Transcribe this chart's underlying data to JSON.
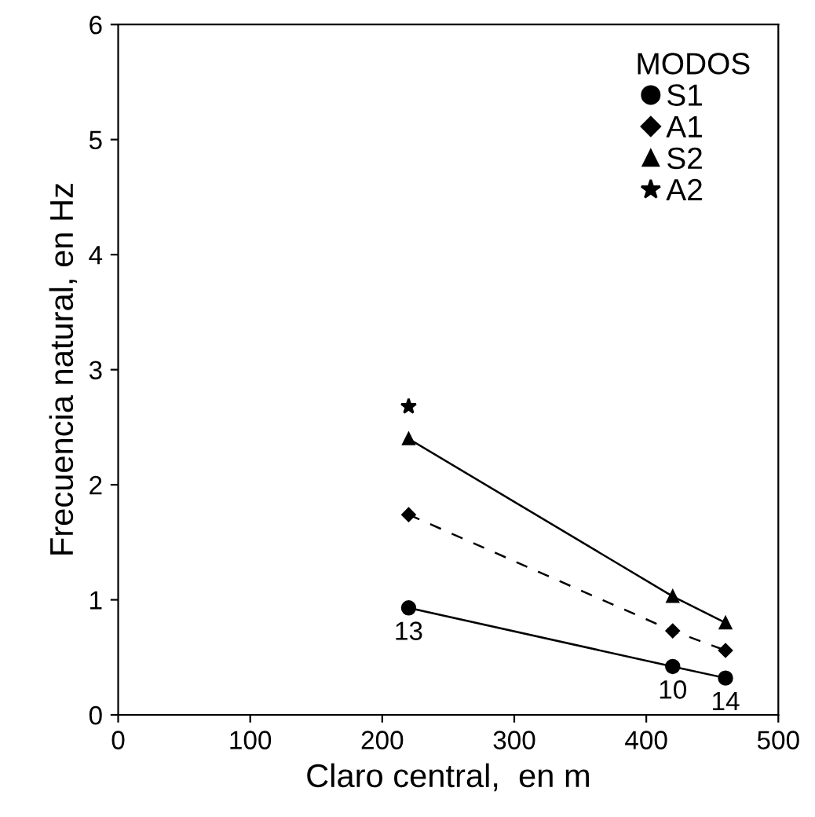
{
  "chart_data": {
    "type": "line",
    "xlabel": "Claro central,  en m",
    "ylabel": "Frecuencia natural, en Hz",
    "legend_title": "MODOS",
    "legend": "top right",
    "x": [
      220,
      420,
      460
    ],
    "series": [
      {
        "name": "S1",
        "color": "#000000",
        "marker": "circle",
        "line_style": "solid",
        "values": [
          0.93,
          0.42,
          0.32
        ]
      },
      {
        "name": "A1",
        "color": "#000000",
        "marker": "diamond",
        "line_style": "dashed",
        "values": [
          1.74,
          0.73,
          0.56
        ]
      },
      {
        "name": "S2",
        "color": "#000000",
        "marker": "triangle",
        "line_style": "solid",
        "values": [
          2.4,
          1.03,
          0.8
        ]
      },
      {
        "name": "A2",
        "color": "#000000",
        "marker": "star",
        "values": [
          2.68,
          null,
          null
        ]
      }
    ],
    "annotations": [
      {
        "text": "13",
        "x": 220,
        "y": 0.93
      },
      {
        "text": "10",
        "x": 420,
        "y": 0.42
      },
      {
        "text": "14",
        "x": 460,
        "y": 0.32
      }
    ],
    "xlim": [
      0,
      500
    ],
    "xticks": [
      0,
      100,
      200,
      300,
      400,
      500
    ],
    "ylim": [
      0,
      6
    ],
    "yticks": [
      0,
      1,
      2,
      3,
      4,
      5,
      6
    ],
    "grid": false
  }
}
